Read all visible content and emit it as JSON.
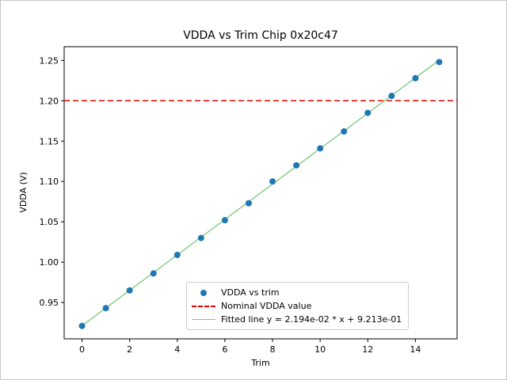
{
  "chart_data": {
    "type": "scatter",
    "title": "VDDA vs Trim Chip 0x20c47",
    "xlabel": "Trim",
    "ylabel": "VDDA (V)",
    "xlim": [
      -0.75,
      15.75
    ],
    "ylim": [
      0.905,
      1.267
    ],
    "grid": false,
    "legend_position": "lower right",
    "xticks": {
      "values": [
        0,
        2,
        4,
        6,
        8,
        10,
        12,
        14
      ],
      "labels": [
        "0",
        "2",
        "4",
        "6",
        "8",
        "10",
        "12",
        "14"
      ]
    },
    "yticks": {
      "values": [
        0.95,
        1.0,
        1.05,
        1.1,
        1.15,
        1.2,
        1.25
      ],
      "labels": [
        "0.95",
        "1.00",
        "1.05",
        "1.10",
        "1.15",
        "1.20",
        "1.25"
      ]
    },
    "x": [
      0,
      1,
      2,
      3,
      4,
      5,
      6,
      7,
      8,
      9,
      10,
      11,
      12,
      13,
      14,
      15
    ],
    "series": [
      {
        "name": "VDDA vs trim",
        "type": "scatter",
        "color": "#1f77b4",
        "values": [
          0.921,
          0.943,
          0.965,
          0.986,
          1.009,
          1.03,
          1.052,
          1.073,
          1.1,
          1.12,
          1.141,
          1.162,
          1.185,
          1.206,
          1.228,
          1.248
        ]
      },
      {
        "name": "Nominal VDDA value",
        "type": "hline",
        "color": "#e50000",
        "dash": true,
        "y": 1.2
      },
      {
        "name": "Fitted line y = 2.194e-02 * x + 9.213e-01",
        "type": "line",
        "color": "#79c879",
        "slope": 0.02194,
        "intercept": 0.9213
      }
    ]
  }
}
